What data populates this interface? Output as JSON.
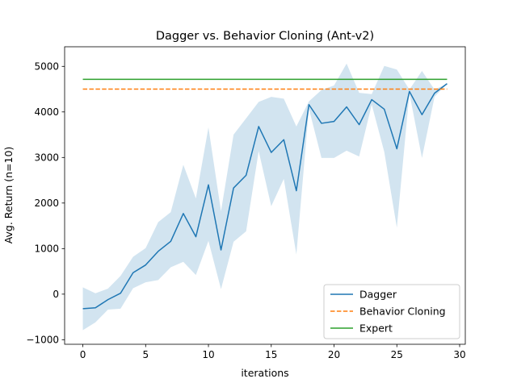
{
  "chart_data": {
    "type": "line",
    "title": "Dagger vs. Behavior Cloning (Ant-v2)",
    "xlabel": "iterations",
    "ylabel": "Avg. Return (n=10)",
    "xlim": [
      -1.45,
      30.45
    ],
    "ylim": [
      -1100,
      5430
    ],
    "xticks": [
      0,
      5,
      10,
      15,
      20,
      25,
      30
    ],
    "yticks": [
      -1000,
      0,
      1000,
      2000,
      3000,
      4000,
      5000
    ],
    "grid": false,
    "legend_position": "lower-right",
    "series": [
      {
        "name": "Dagger",
        "style": "solid",
        "color": "#1f77b4",
        "x": [
          0,
          1,
          2,
          3,
          4,
          5,
          6,
          7,
          8,
          9,
          10,
          11,
          12,
          13,
          14,
          15,
          16,
          17,
          18,
          19,
          20,
          21,
          22,
          23,
          24,
          25,
          26,
          27,
          28,
          29
        ],
        "y": [
          -320,
          -300,
          -120,
          20,
          470,
          640,
          940,
          1160,
          1770,
          1260,
          2400,
          970,
          2330,
          2610,
          3680,
          3110,
          3390,
          2270,
          4160,
          3750,
          3790,
          4110,
          3720,
          4270,
          4060,
          3190,
          4450,
          3940,
          4410,
          4620
        ],
        "band_upper": [
          150,
          20,
          120,
          400,
          820,
          1010,
          1580,
          1800,
          2840,
          2100,
          3660,
          1820,
          3500,
          3860,
          4220,
          4330,
          4290,
          3680,
          4230,
          4480,
          4580,
          5060,
          4420,
          4390,
          5010,
          4930,
          4490,
          4900,
          4490,
          4620
        ],
        "band_lower": [
          -790,
          -620,
          -340,
          -320,
          130,
          260,
          310,
          590,
          710,
          420,
          1170,
          110,
          1150,
          1380,
          3140,
          1930,
          2530,
          870,
          4070,
          2990,
          2990,
          3150,
          3020,
          4160,
          3120,
          1460,
          4410,
          2990,
          4330,
          4620
        ]
      },
      {
        "name": "Behavior Cloning",
        "style": "dashed",
        "color": "#ff7f0e",
        "x": [
          0,
          29
        ],
        "y": [
          4500,
          4500
        ]
      },
      {
        "name": "Expert",
        "style": "solid",
        "color": "#2ca02c",
        "x": [
          0,
          29
        ],
        "y": [
          4715,
          4715
        ]
      }
    ],
    "band_color": "#1f77b4",
    "band_opacity": 0.2
  }
}
